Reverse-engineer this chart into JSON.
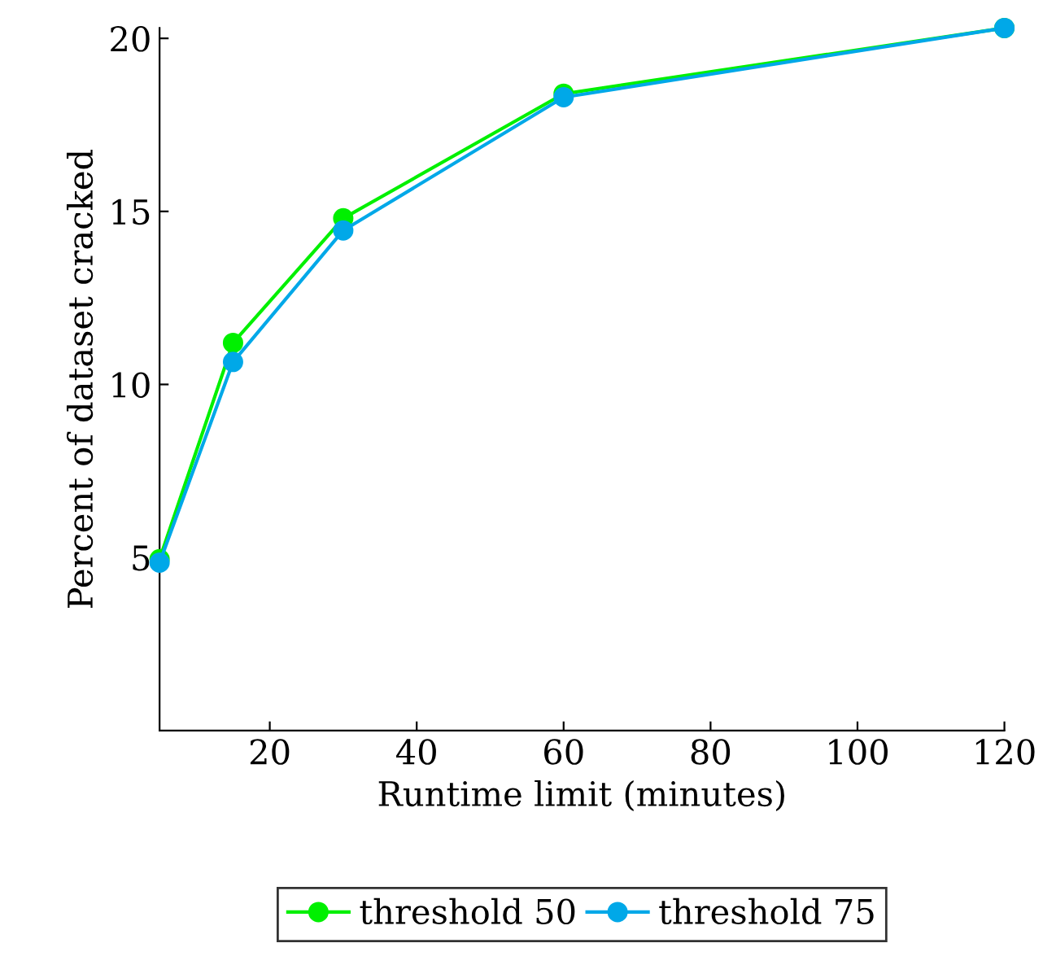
{
  "chart_data": {
    "type": "line",
    "xlabel": "Runtime limit (minutes)",
    "ylabel": "Percent of dataset cracked",
    "x": [
      5,
      15,
      30,
      60,
      120
    ],
    "series": [
      {
        "name": "threshold 50",
        "color": "#00f000",
        "values": [
          4.95,
          11.2,
          14.8,
          18.4,
          20.3
        ]
      },
      {
        "name": "threshold 75",
        "color": "#00a8e8",
        "values": [
          4.85,
          10.65,
          14.45,
          18.3,
          20.3
        ]
      }
    ],
    "xlim": [
      5,
      120
    ],
    "xticks": [
      20,
      40,
      60,
      80,
      100,
      120
    ],
    "ylim": [
      0,
      20.3
    ],
    "yticks": [
      5,
      10,
      15,
      20
    ],
    "grid": false,
    "legend": "bottom",
    "marker": "circle",
    "line_style": "solid"
  }
}
